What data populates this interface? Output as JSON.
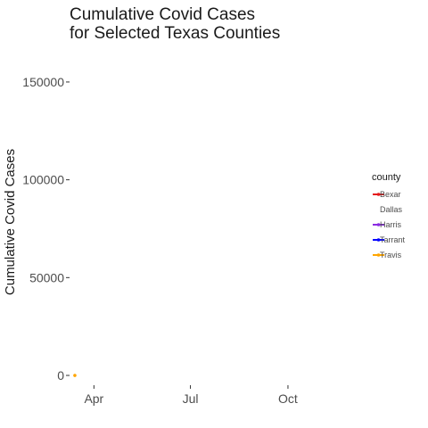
{
  "chart_data": {
    "type": "line",
    "title_lines": [
      "Cumulative Covid Cases",
      "for Selected Texas Counties"
    ],
    "xlabel": "",
    "ylabel": "Cumulative Covid Cases",
    "y_ticks": [
      0,
      50000,
      100000,
      150000
    ],
    "y_tick_labels": [
      "0",
      "50000",
      "100000",
      "150000"
    ],
    "ylim": [
      -5000,
      160000
    ],
    "x_ticks": [
      "2020-04-01",
      "2020-07-01",
      "2020-10-01"
    ],
    "x_tick_labels": [
      "Apr",
      "Jul",
      "Oct"
    ],
    "xlim": [
      "2020-03-09",
      "2020-12-09"
    ],
    "grid": false,
    "legend": {
      "title": "county",
      "position": "right"
    },
    "series": [
      {
        "name": "Bexar",
        "color": "#e41a1c",
        "points": []
      },
      {
        "name": "Dallas",
        "color": "#ffffff",
        "points": []
      },
      {
        "name": "Harris",
        "color": "#8a2be2",
        "points": []
      },
      {
        "name": "Tarrant",
        "color": "#0000ff",
        "points": []
      },
      {
        "name": "Travis",
        "color": "#ffa500",
        "points": [
          {
            "x": "2020-03-14",
            "y": 0
          }
        ]
      }
    ]
  }
}
